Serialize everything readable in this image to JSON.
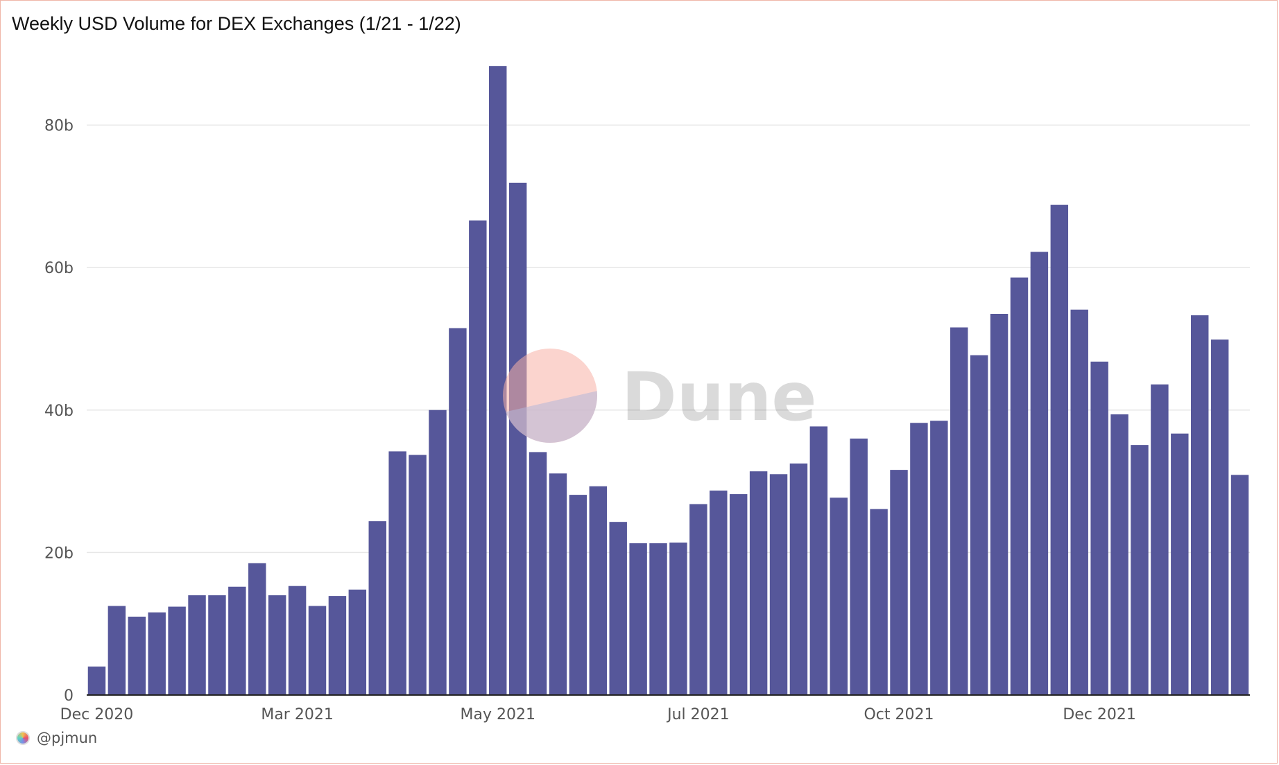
{
  "chart_data": {
    "type": "bar",
    "title": "Weekly USD Volume for DEX Exchanges (1/21 - 1/22)",
    "xlabel": "",
    "ylabel": "",
    "ylim": [
      0,
      88
    ],
    "y_unit": "b",
    "y_ticks": [
      {
        "value": 0,
        "label": "0"
      },
      {
        "value": 20,
        "label": "20b"
      },
      {
        "value": 40,
        "label": "40b"
      },
      {
        "value": 60,
        "label": "60b"
      },
      {
        "value": 80,
        "label": "80b"
      }
    ],
    "x_ticks": [
      {
        "index": 0.5,
        "label": "Dec 2020"
      },
      {
        "index": 10.5,
        "label": "Mar 2021"
      },
      {
        "index": 20.5,
        "label": "May 2021"
      },
      {
        "index": 30.5,
        "label": "Jul 2021"
      },
      {
        "index": 40.5,
        "label": "Oct 2021"
      },
      {
        "index": 50.5,
        "label": "Dec 2021"
      }
    ],
    "values": [
      4.0,
      12.5,
      11.0,
      11.6,
      12.4,
      14.0,
      14.0,
      15.2,
      18.5,
      14.0,
      15.3,
      12.5,
      13.9,
      14.8,
      24.4,
      34.2,
      33.7,
      40.0,
      51.5,
      66.6,
      88.3,
      71.9,
      34.1,
      31.1,
      28.1,
      29.3,
      24.3,
      21.3,
      21.3,
      21.4,
      26.8,
      28.7,
      28.2,
      31.4,
      31.0,
      32.5,
      37.7,
      27.7,
      36.0,
      26.1,
      31.6,
      38.2,
      38.5,
      51.6,
      47.7,
      53.5,
      58.6,
      62.2,
      68.8,
      54.1,
      46.8,
      39.4,
      35.1,
      43.6,
      36.7,
      53.3,
      49.9,
      30.9
    ],
    "grid": true,
    "legend": "none",
    "colors": {
      "bar": "#56579a",
      "grid": "#e6e6e6",
      "axis": "#222222",
      "border": "#f0b6a8"
    }
  },
  "watermark": {
    "text": "Dune"
  },
  "footer": {
    "author": "@pjmun"
  }
}
